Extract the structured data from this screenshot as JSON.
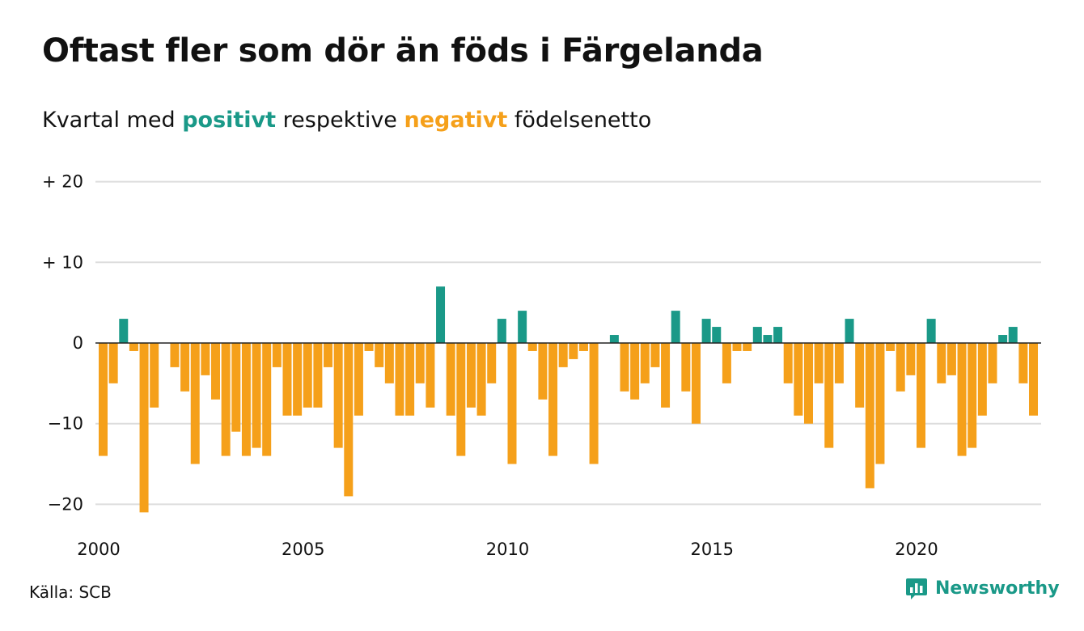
{
  "header": {
    "title": "Oftast fler som dör än föds i Färgelanda",
    "subtitle_prefix": "Kvartal med",
    "subtitle_positive": "positivt",
    "subtitle_middle": "respektive",
    "subtitle_negative": "negativt",
    "subtitle_suffix": "födelsenetto"
  },
  "footer": {
    "source": "Källa: SCB",
    "brand": "Newsworthy",
    "brand_icon": "bar-chart-logo-icon"
  },
  "colors": {
    "positive": "#1a9988",
    "negative": "#f5a01a",
    "grid": "#dddddd",
    "zero_line": "#222222"
  },
  "chart_data": {
    "type": "bar",
    "x_start": 2000,
    "x_end": 2023.25,
    "quarters_start": "2000 Q1",
    "ylim": [
      -21,
      20
    ],
    "y_ticks": [
      20,
      10,
      0,
      -10,
      -20
    ],
    "y_tick_labels": [
      "+ 20",
      "+ 10",
      "0",
      "−10",
      "−20"
    ],
    "x_ticks": [
      2000,
      2005,
      2010,
      2015,
      2020
    ],
    "x_tick_labels": [
      "2000",
      "2005",
      "2010",
      "2015",
      "2020"
    ],
    "grid": true,
    "values": [
      -14,
      -5,
      3,
      -1,
      -21,
      -8,
      0,
      -3,
      -6,
      -15,
      -4,
      -7,
      -14,
      -11,
      -14,
      -13,
      -14,
      -3,
      -9,
      -9,
      -8,
      -8,
      -3,
      -13,
      -19,
      -9,
      -1,
      -3,
      -5,
      -9,
      -9,
      -5,
      -8,
      7,
      -9,
      -14,
      -8,
      -9,
      -5,
      3,
      -15,
      4,
      -1,
      -7,
      -14,
      -3,
      -2,
      -1,
      -15,
      0,
      1,
      -6,
      -7,
      -5,
      -3,
      -8,
      4,
      -6,
      -10,
      3,
      2,
      -5,
      -1,
      -1,
      2,
      1,
      2,
      -5,
      -9,
      -10,
      -5,
      -13,
      -5,
      3,
      -8,
      -18,
      -15,
      -1,
      -6,
      -4,
      -13,
      3,
      -5,
      -4,
      -14,
      -13,
      -9,
      -5,
      1,
      2,
      -5,
      -9
    ]
  }
}
